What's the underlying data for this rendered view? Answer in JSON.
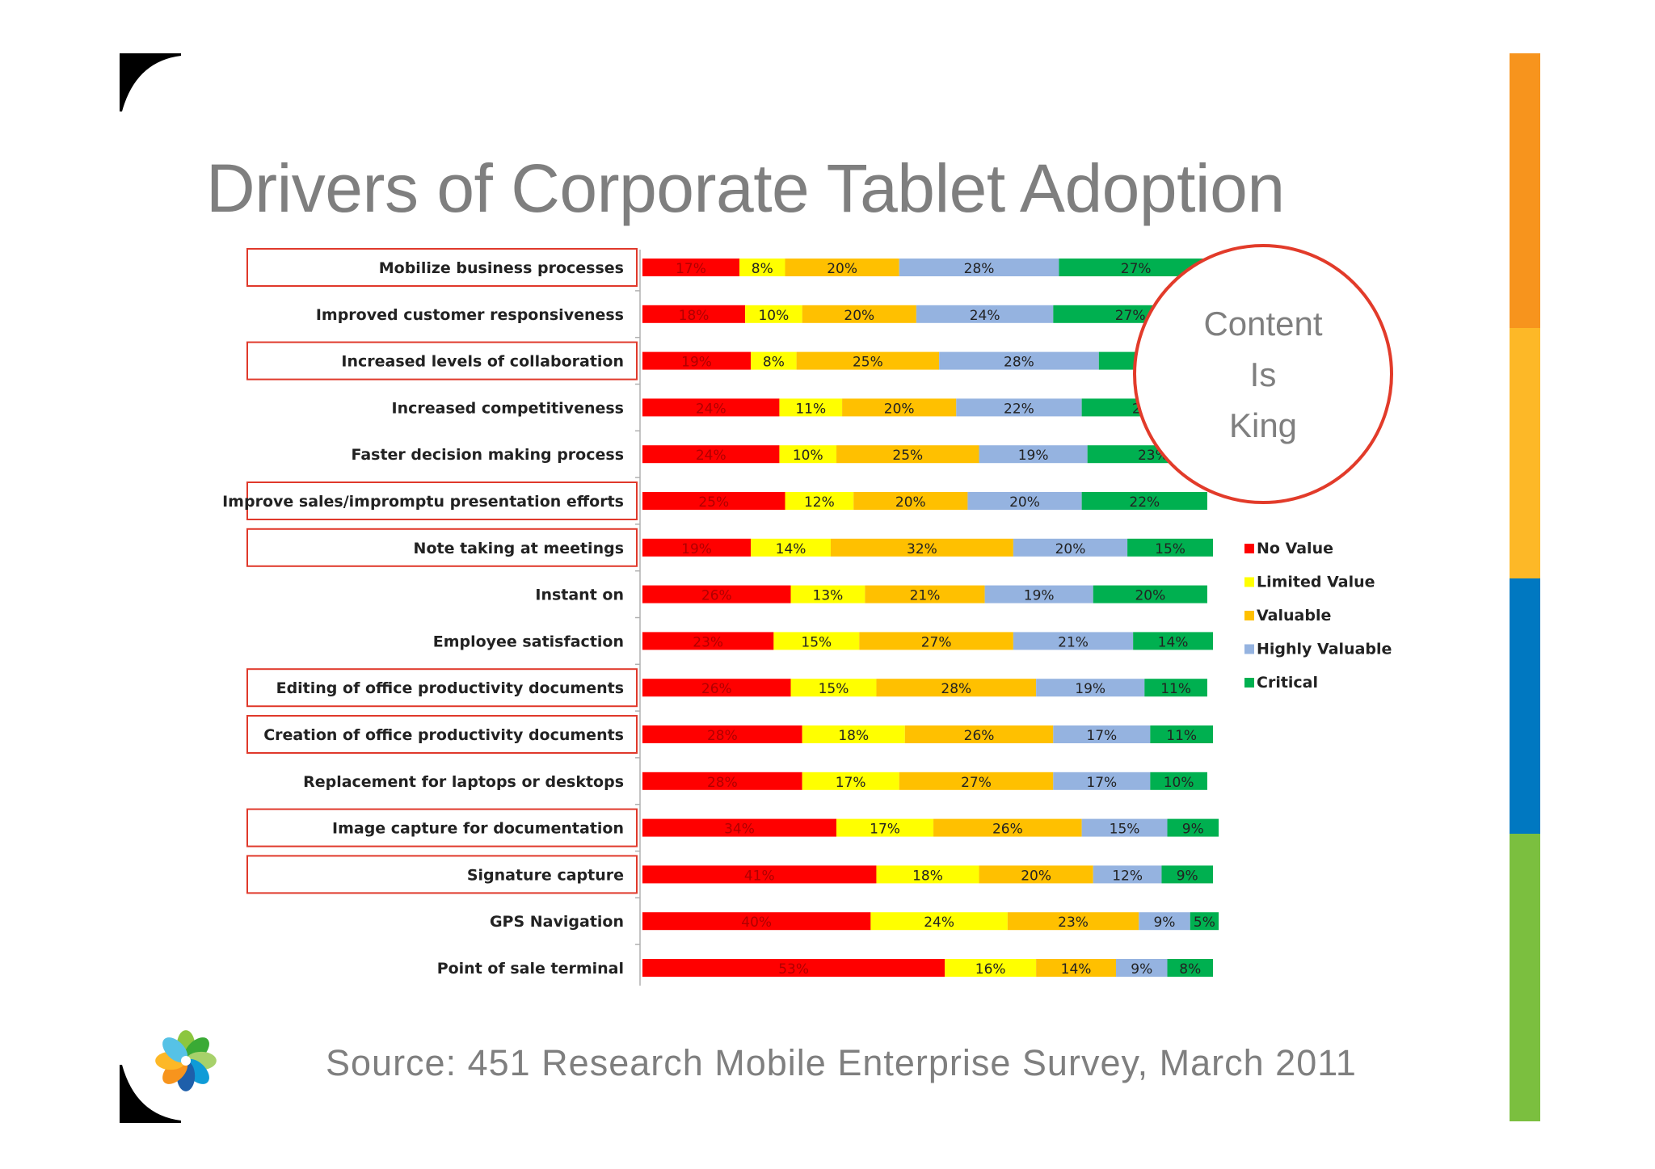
{
  "slide": {
    "title": "Drivers of Corporate Tablet Adoption",
    "source": "Source: 451 Research Mobile Enterprise Survey, March 2011",
    "callout": [
      "Content",
      "Is",
      "King"
    ],
    "accent_colors": [
      "#f7941d",
      "#fdb827",
      "#0078c1",
      "#7bbf3f"
    ],
    "callout_color": "#e23b2a"
  },
  "chart_data": {
    "type": "bar",
    "orientation": "horizontal",
    "stacked": true,
    "percent_stacked": true,
    "title": "",
    "xlabel": "",
    "ylabel": "",
    "legend_position": "right",
    "categories": [
      "Mobilize business processes",
      "Improved customer responsiveness",
      "Increased levels of collaboration",
      "Increased competitiveness",
      "Faster decision making process",
      "Improve sales/impromptu presentation efforts",
      "Note taking at meetings",
      "Instant on",
      "Employee satisfaction",
      "Editing of office productivity documents",
      "Creation of office productivity documents",
      "Replacement for laptops or desktops",
      "Image capture for documentation",
      "Signature capture",
      "GPS Navigation",
      "Point of sale terminal"
    ],
    "highlighted": [
      true,
      false,
      true,
      false,
      false,
      true,
      true,
      false,
      false,
      true,
      true,
      false,
      true,
      true,
      false,
      false
    ],
    "series": [
      {
        "name": "No Value",
        "color": "#ff0000",
        "values": [
          17,
          18,
          19,
          24,
          24,
          25,
          19,
          26,
          23,
          26,
          28,
          28,
          34,
          41,
          40,
          53
        ]
      },
      {
        "name": "Limited Value",
        "color": "#ffff00",
        "values": [
          8,
          10,
          8,
          11,
          10,
          12,
          14,
          13,
          15,
          15,
          18,
          17,
          17,
          18,
          24,
          16
        ]
      },
      {
        "name": "Valuable",
        "color": "#ffc000",
        "values": [
          20,
          20,
          25,
          20,
          25,
          20,
          32,
          21,
          27,
          28,
          26,
          27,
          26,
          20,
          23,
          14
        ]
      },
      {
        "name": "Highly Valuable",
        "color": "#95b3e0",
        "values": [
          28,
          24,
          28,
          22,
          19,
          20,
          20,
          19,
          21,
          19,
          17,
          17,
          15,
          12,
          9,
          9
        ]
      },
      {
        "name": "Critical",
        "color": "#00b050",
        "values": [
          27,
          27,
          20,
          23,
          23,
          22,
          15,
          20,
          14,
          11,
          11,
          10,
          9,
          9,
          5,
          8
        ]
      }
    ]
  }
}
